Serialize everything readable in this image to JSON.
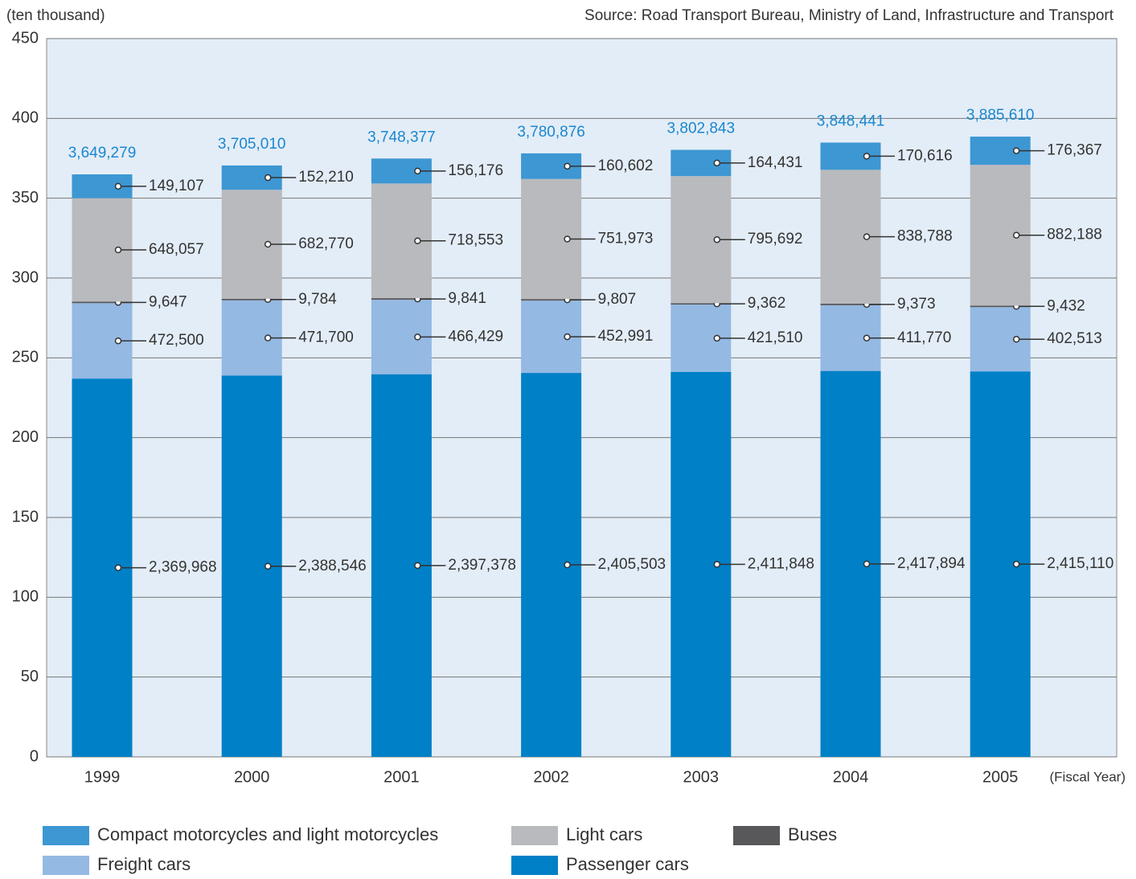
{
  "chart_data": {
    "type": "stacked_bar",
    "y_unit_label": "(ten thousand)",
    "source": "Source: Road Transport Bureau, Ministry of Land, Infrastructure and Transport",
    "x_label": "(Fiscal Year)",
    "categories": [
      "1999",
      "2000",
      "2001",
      "2002",
      "2003",
      "2004",
      "2005"
    ],
    "series": [
      {
        "name": "Passenger cars",
        "color": "#0080c6",
        "values": [
          236.9968,
          238.8546,
          239.7378,
          240.5503,
          241.1848,
          241.7894,
          241.511
        ],
        "value_labels": [
          "2,369,968",
          "2,388,546",
          "2,397,378",
          "2,405,503",
          "2,411,848",
          "2,417,894",
          "2,415,110"
        ]
      },
      {
        "name": "Freight cars",
        "color": "#94b9e3",
        "values": [
          47.25,
          47.17,
          46.6429,
          45.2991,
          42.151,
          41.177,
          40.2513
        ],
        "value_labels": [
          "472,500",
          "471,700",
          "466,429",
          "452,991",
          "421,510",
          "411,770",
          "402,513"
        ]
      },
      {
        "name": "Buses",
        "color": "#58585a",
        "values": [
          0.9647,
          0.9784,
          0.9841,
          0.9807,
          0.9362,
          0.9373,
          0.9432
        ],
        "value_labels": [
          "9,647",
          "9,784",
          "9,841",
          "9,807",
          "9,362",
          "9,373",
          "9,432"
        ]
      },
      {
        "name": "Light cars",
        "color": "#b9babd",
        "values": [
          64.8057,
          68.277,
          71.8553,
          75.1973,
          79.5692,
          83.8788,
          88.2188
        ],
        "value_labels": [
          "648,057",
          "682,770",
          "718,553",
          "751,973",
          "795,692",
          "838,788",
          "882,188"
        ]
      },
      {
        "name": "Compact motorcycles and light motorcycles",
        "color": "#3d97d3",
        "values": [
          14.9107,
          15.221,
          15.6176,
          16.0602,
          16.4431,
          17.0616,
          17.6367
        ],
        "value_labels": [
          "149,107",
          "152,210",
          "156,176",
          "160,602",
          "164,431",
          "170,616",
          "176,367"
        ]
      }
    ],
    "totals": {
      "values": [
        364.9279,
        370.501,
        374.8377,
        378.0876,
        380.2843,
        384.8441,
        388.561
      ],
      "value_labels": [
        "3,649,279",
        "3,705,010",
        "3,748,377",
        "3,780,876",
        "3,802,843",
        "3,848,441",
        "3,885,610"
      ],
      "color": "#1a87cf"
    },
    "ylim": [
      0,
      450
    ],
    "yticks": [
      0,
      50,
      100,
      150,
      200,
      250,
      300,
      350,
      400,
      450
    ],
    "grid": true,
    "plot_background": "#e3edf7"
  }
}
